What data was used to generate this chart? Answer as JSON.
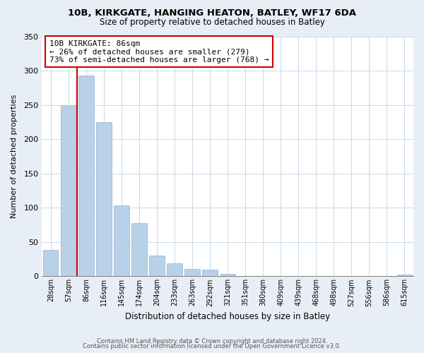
{
  "title1": "10B, KIRKGATE, HANGING HEATON, BATLEY, WF17 6DA",
  "title2": "Size of property relative to detached houses in Batley",
  "xlabel": "Distribution of detached houses by size in Batley",
  "ylabel": "Number of detached properties",
  "bar_labels": [
    "28sqm",
    "57sqm",
    "86sqm",
    "116sqm",
    "145sqm",
    "174sqm",
    "204sqm",
    "233sqm",
    "263sqm",
    "292sqm",
    "321sqm",
    "351sqm",
    "380sqm",
    "409sqm",
    "439sqm",
    "468sqm",
    "498sqm",
    "527sqm",
    "556sqm",
    "586sqm",
    "615sqm"
  ],
  "bar_values": [
    39,
    250,
    293,
    225,
    103,
    78,
    30,
    19,
    11,
    10,
    4,
    0,
    0,
    0,
    0,
    0,
    0,
    0,
    0,
    0,
    2
  ],
  "bar_color": "#b8d0e8",
  "bar_edge_color": "#a0b8d8",
  "marker_index": 2,
  "marker_color": "#cc0000",
  "annotation_title": "10B KIRKGATE: 86sqm",
  "annotation_line1": "← 26% of detached houses are smaller (279)",
  "annotation_line2": "73% of semi-detached houses are larger (768) →",
  "annotation_box_color": "#ffffff",
  "annotation_box_edge": "#cc0000",
  "ylim": [
    0,
    350
  ],
  "yticks": [
    0,
    50,
    100,
    150,
    200,
    250,
    300,
    350
  ],
  "footer1": "Contains HM Land Registry data © Crown copyright and database right 2024.",
  "footer2": "Contains public sector information licensed under the Open Government Licence v3.0.",
  "bg_color": "#e8eef5",
  "plot_bg_color": "#ffffff"
}
